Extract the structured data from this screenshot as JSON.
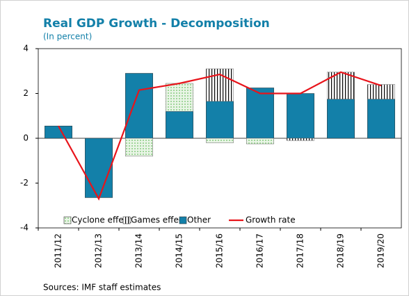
{
  "chart_data": {
    "type": "bar",
    "stacked": true,
    "title": "Real GDP Growth - Decomposition",
    "subtitle": "(In percent)",
    "source": "Sources: IMF staff estimates",
    "categories": [
      "2011/12",
      "2012/13",
      "2013/14",
      "2014/15",
      "2015/16",
      "2016/17",
      "2017/18",
      "2018/19",
      "2019/20"
    ],
    "series": [
      {
        "name": "Cyclone effect",
        "color": "#b5dfb0",
        "pattern": "dots",
        "values": [
          0,
          0,
          -0.8,
          1.25,
          -0.2,
          -0.25,
          0,
          0,
          0
        ]
      },
      {
        "name": "Games effect",
        "color": "#000000",
        "pattern": "stripes",
        "values": [
          0,
          0,
          0,
          0,
          1.45,
          0,
          -0.1,
          1.2,
          0.65
        ]
      },
      {
        "name": "Other",
        "color": "#1380a9",
        "values": [
          0.55,
          -2.65,
          2.9,
          1.2,
          1.65,
          2.25,
          2.0,
          1.75,
          1.75
        ]
      },
      {
        "name": "Growth rate",
        "type": "line",
        "color": "#e8141b",
        "values": [
          0.55,
          -2.7,
          2.15,
          2.45,
          2.85,
          2.0,
          2.0,
          2.95,
          2.35
        ]
      }
    ],
    "stack_order": [
      2,
      0,
      1
    ],
    "ylim": [
      -4,
      4
    ],
    "yticks": [
      -4,
      -2,
      0,
      2,
      4
    ],
    "grid": false,
    "legend": "bottom"
  }
}
